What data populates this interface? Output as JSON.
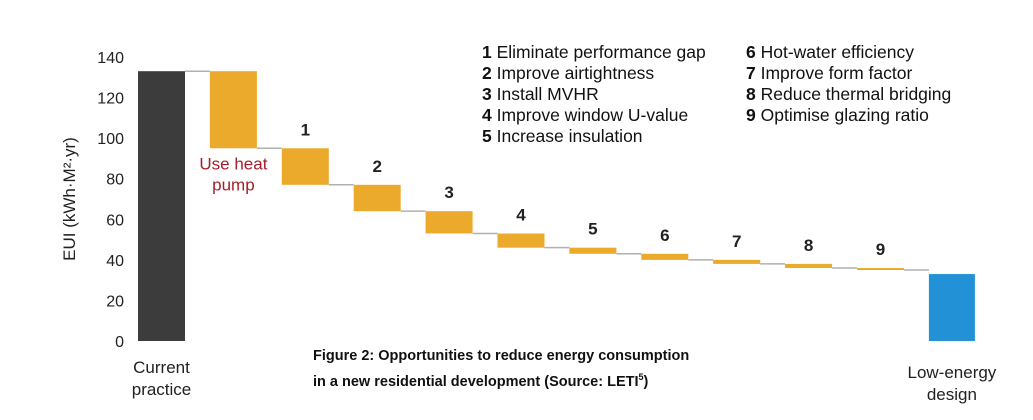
{
  "chart_data": {
    "type": "waterfall",
    "ylabel": "EUI (kWh·M²·yr)",
    "ylim": [
      0,
      140
    ],
    "yticks": [
      0,
      20,
      40,
      60,
      80,
      100,
      120,
      140
    ],
    "colors": {
      "total_start": "#3c3c3c",
      "step": "#ecaa2c",
      "total_end": "#2291d6",
      "connector": "#b0b0b0"
    },
    "bars": [
      {
        "label": "",
        "category": "Current practice",
        "kind": "total_start",
        "start": 0,
        "end": 133
      },
      {
        "label": "",
        "annotation": "Use heat pump",
        "kind": "step",
        "start": 133,
        "end": 95
      },
      {
        "label": "1",
        "kind": "step",
        "start": 95,
        "end": 77
      },
      {
        "label": "2",
        "kind": "step",
        "start": 77,
        "end": 64
      },
      {
        "label": "3",
        "kind": "step",
        "start": 64,
        "end": 53
      },
      {
        "label": "4",
        "kind": "step",
        "start": 53,
        "end": 46
      },
      {
        "label": "5",
        "kind": "step",
        "start": 46,
        "end": 43
      },
      {
        "label": "6",
        "kind": "step",
        "start": 43,
        "end": 40
      },
      {
        "label": "7",
        "kind": "step",
        "start": 40,
        "end": 38
      },
      {
        "label": "8",
        "kind": "step",
        "start": 38,
        "end": 36
      },
      {
        "label": "9",
        "kind": "step",
        "start": 36,
        "end": 35
      },
      {
        "label": "",
        "category": "Low-energy design",
        "kind": "total_end",
        "start": 0,
        "end": 33
      }
    ],
    "categories_lines": {
      "first": [
        "Current",
        "practice"
      ],
      "last": [
        "Low-energy",
        "design"
      ],
      "annotation": [
        "Use heat",
        "pump"
      ]
    }
  },
  "legend": {
    "col1": [
      {
        "num": "1",
        "text": "Eliminate performance gap"
      },
      {
        "num": "2",
        "text": "Improve airtightness"
      },
      {
        "num": "3",
        "text": "Install MVHR"
      },
      {
        "num": "4",
        "text": "Improve window U-value"
      },
      {
        "num": "5",
        "text": "Increase insulation"
      }
    ],
    "col2": [
      {
        "num": "6",
        "text": "Hot-water efficiency"
      },
      {
        "num": "7",
        "text": "Improve form factor"
      },
      {
        "num": "8",
        "text": "Reduce thermal bridging"
      },
      {
        "num": "9",
        "text": "Optimise glazing ratio"
      }
    ]
  },
  "caption": {
    "line1": "Figure 2: Opportunities to reduce energy consumption",
    "line2_prefix": "in a new residential development (Source: LETI",
    "line2_sup": "5",
    "line2_suffix": ")"
  }
}
